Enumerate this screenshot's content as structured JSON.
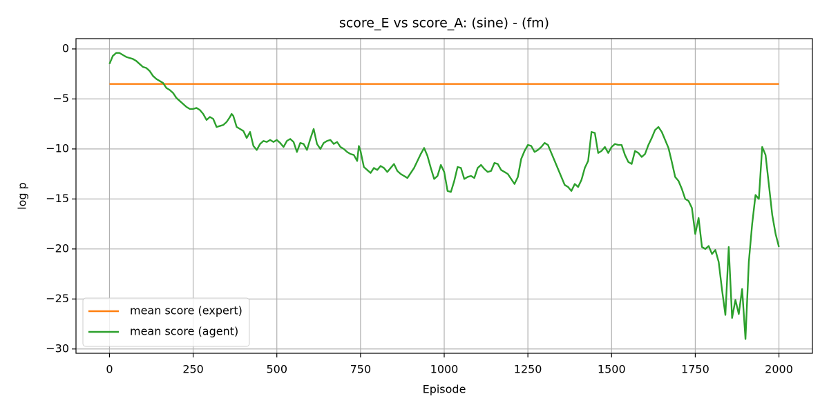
{
  "chart_data": {
    "type": "line",
    "title": "score_E vs score_A: (sine) - (fm)",
    "xlabel": "Episode",
    "ylabel": "log p",
    "xlim": [
      -100,
      2100
    ],
    "ylim": [
      -30.43,
      1.03
    ],
    "xticks": [
      0,
      250,
      500,
      750,
      1000,
      1250,
      1500,
      1750,
      2000
    ],
    "yticks": [
      {
        "value": 0,
        "label": "0"
      },
      {
        "value": -5,
        "label": "−5"
      },
      {
        "value": -10,
        "label": "−10"
      },
      {
        "value": -15,
        "label": "−15"
      },
      {
        "value": -20,
        "label": "−20"
      },
      {
        "value": -25,
        "label": "−25"
      },
      {
        "value": -30,
        "label": "−30"
      }
    ],
    "grid": true,
    "legend": "lower left",
    "series": [
      {
        "name": "mean score (expert)",
        "color": "#ff7f0e",
        "x": [
          0,
          2000
        ],
        "values": [
          -3.5,
          -3.5
        ]
      },
      {
        "name": "mean score (agent)",
        "color": "#2ca02c",
        "x": [
          0,
          10,
          20,
          30,
          40,
          50,
          60,
          70,
          80,
          90,
          100,
          110,
          120,
          130,
          140,
          150,
          160,
          170,
          180,
          190,
          200,
          210,
          220,
          230,
          240,
          250,
          260,
          270,
          280,
          290,
          300,
          310,
          320,
          330,
          340,
          350,
          360,
          365,
          370,
          380,
          390,
          400,
          410,
          420,
          430,
          440,
          450,
          460,
          470,
          480,
          490,
          500,
          510,
          520,
          530,
          540,
          550,
          560,
          570,
          580,
          590,
          600,
          610,
          620,
          630,
          640,
          650,
          660,
          670,
          680,
          690,
          700,
          710,
          720,
          730,
          740,
          745,
          750,
          760,
          770,
          780,
          790,
          800,
          810,
          820,
          830,
          840,
          850,
          860,
          870,
          880,
          890,
          900,
          910,
          920,
          930,
          940,
          950,
          960,
          970,
          980,
          990,
          1000,
          1010,
          1020,
          1030,
          1040,
          1050,
          1060,
          1070,
          1080,
          1090,
          1100,
          1110,
          1120,
          1130,
          1140,
          1150,
          1160,
          1170,
          1180,
          1190,
          1200,
          1210,
          1220,
          1230,
          1240,
          1250,
          1260,
          1270,
          1280,
          1290,
          1300,
          1310,
          1320,
          1330,
          1340,
          1350,
          1360,
          1370,
          1380,
          1390,
          1400,
          1410,
          1420,
          1430,
          1440,
          1450,
          1460,
          1470,
          1480,
          1490,
          1500,
          1510,
          1520,
          1530,
          1540,
          1550,
          1560,
          1570,
          1580,
          1590,
          1600,
          1610,
          1620,
          1630,
          1640,
          1650,
          1660,
          1670,
          1680,
          1690,
          1700,
          1710,
          1720,
          1730,
          1740,
          1750,
          1760,
          1770,
          1780,
          1790,
          1800,
          1810,
          1820,
          1830,
          1840,
          1850,
          1860,
          1870,
          1880,
          1890,
          1900,
          1910,
          1920,
          1930,
          1940,
          1950,
          1960,
          1970,
          1980,
          1990,
          2000
        ],
        "values": [
          -1.5,
          -0.7,
          -0.4,
          -0.4,
          -0.6,
          -0.8,
          -0.9,
          -1.0,
          -1.2,
          -1.5,
          -1.8,
          -1.9,
          -2.2,
          -2.7,
          -3.0,
          -3.2,
          -3.4,
          -3.9,
          -4.1,
          -4.4,
          -4.9,
          -5.2,
          -5.5,
          -5.8,
          -6.0,
          -6.0,
          -5.9,
          -6.1,
          -6.5,
          -7.1,
          -6.8,
          -7.0,
          -7.8,
          -7.7,
          -7.6,
          -7.3,
          -6.8,
          -6.5,
          -6.7,
          -7.8,
          -8.0,
          -8.2,
          -8.9,
          -8.3,
          -9.7,
          -10.1,
          -9.5,
          -9.2,
          -9.3,
          -9.1,
          -9.3,
          -9.1,
          -9.4,
          -9.8,
          -9.2,
          -9.0,
          -9.3,
          -10.3,
          -9.4,
          -9.5,
          -10.1,
          -9.0,
          -8.0,
          -9.5,
          -10.0,
          -9.4,
          -9.2,
          -9.1,
          -9.5,
          -9.3,
          -9.8,
          -10.0,
          -10.3,
          -10.5,
          -10.6,
          -11.2,
          -9.7,
          -10.2,
          -11.8,
          -12.1,
          -12.4,
          -11.9,
          -12.1,
          -11.7,
          -11.9,
          -12.3,
          -11.9,
          -11.5,
          -12.2,
          -12.5,
          -12.7,
          -12.9,
          -12.4,
          -11.9,
          -11.2,
          -10.5,
          -9.9,
          -10.7,
          -11.9,
          -13.0,
          -12.7,
          -11.6,
          -12.3,
          -14.2,
          -14.3,
          -13.2,
          -11.8,
          -11.9,
          -13.0,
          -12.8,
          -12.7,
          -12.9,
          -11.9,
          -11.6,
          -12.0,
          -12.3,
          -12.2,
          -11.4,
          -11.5,
          -12.1,
          -12.3,
          -12.5,
          -13.0,
          -13.5,
          -12.8,
          -11.0,
          -10.2,
          -9.6,
          -9.7,
          -10.3,
          -10.1,
          -9.8,
          -9.4,
          -9.6,
          -10.4,
          -11.2,
          -12.0,
          -12.8,
          -13.6,
          -13.8,
          -14.2,
          -13.5,
          -13.8,
          -13.1,
          -11.9,
          -11.2,
          -8.3,
          -8.4,
          -10.4,
          -10.2,
          -9.8,
          -10.4,
          -9.8,
          -9.5,
          -9.6,
          -9.6,
          -10.6,
          -11.3,
          -11.5,
          -10.2,
          -10.4,
          -10.8,
          -10.5,
          -9.6,
          -8.9,
          -8.1,
          -7.8,
          -8.3,
          -9.1,
          -9.9,
          -11.3,
          -12.8,
          -13.2,
          -14.0,
          -15.0,
          -15.2,
          -15.9,
          -18.5,
          -16.9,
          -19.8,
          -20.0,
          -19.7,
          -20.5,
          -20.1,
          -21.3,
          -24.1,
          -26.6,
          -19.8,
          -26.9,
          -25.1,
          -26.5,
          -24.0,
          -29.0,
          -21.3,
          -17.5,
          -14.6,
          -15.0,
          -9.8,
          -10.6,
          -13.6,
          -16.6,
          -18.5,
          -19.8
        ]
      }
    ]
  }
}
